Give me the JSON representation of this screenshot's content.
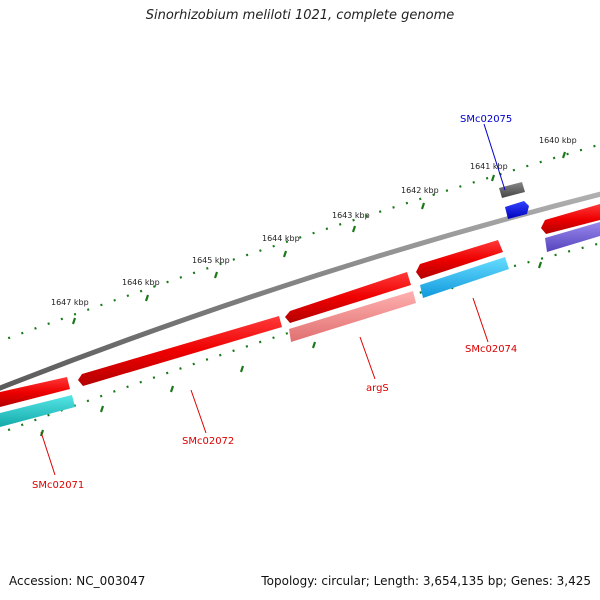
{
  "title": "Sinorhizobium meliloti 1021, complete genome",
  "footer": {
    "accession": "Accession: NC_003047",
    "summary": "Topology: circular; Length: 3,654,135 bp; Genes: 3,425"
  },
  "ticks": [
    {
      "label": "1640 kbp"
    },
    {
      "label": "1641 kbp"
    },
    {
      "label": "1642 kbp"
    },
    {
      "label": "1643 kbp"
    },
    {
      "label": "1644 kbp"
    },
    {
      "label": "1645 kbp"
    },
    {
      "label": "1646 kbp"
    },
    {
      "label": "1647 kbp"
    }
  ],
  "genes": [
    {
      "name": "SMc02075",
      "color": "#0000cc"
    },
    {
      "name": "SMc02074",
      "color": "#dd0000"
    },
    {
      "name": "argS",
      "color": "#dd0000"
    },
    {
      "name": "SMc02072",
      "color": "#dd0000"
    },
    {
      "name": "SMc02071",
      "color": "#dd0000"
    }
  ],
  "colors": {
    "backbone": "#808080",
    "cds_forward": "#ee1111",
    "cds_reverse": "#ee1111",
    "feature_cyan": "#33bbee",
    "feature_teal": "#22cccc",
    "feature_pink": "#f08080",
    "feature_purple": "#6655cc",
    "tick_green": "#1a7a1a"
  }
}
